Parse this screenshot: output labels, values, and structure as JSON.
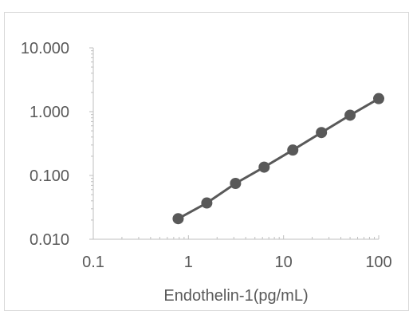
{
  "chart_data": {
    "type": "line",
    "title": "",
    "xlabel": "Endothelin-1(pg/mL)",
    "ylabel": "",
    "x_scale": "log",
    "y_scale": "log",
    "xlim": [
      0.1,
      100
    ],
    "ylim": [
      0.01,
      10
    ],
    "x_ticks": [
      "0.1",
      "1",
      "10",
      "100"
    ],
    "y_ticks": [
      "0.010",
      "0.100",
      "1.000",
      "10.000"
    ],
    "grid": false,
    "legend": "none",
    "series": [
      {
        "x": [
          0.78,
          1.56,
          3.125,
          6.25,
          12.5,
          25,
          50,
          100
        ],
        "y": [
          0.021,
          0.037,
          0.075,
          0.135,
          0.25,
          0.47,
          0.88,
          1.6
        ],
        "color": "#595959"
      }
    ]
  }
}
